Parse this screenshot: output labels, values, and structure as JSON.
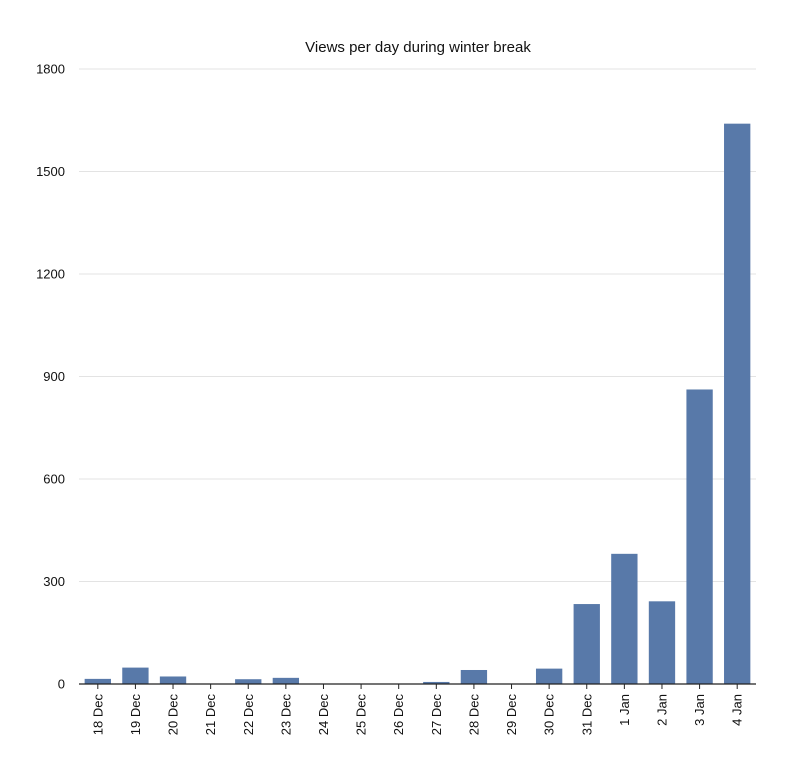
{
  "chart_data": {
    "type": "bar",
    "title": "Views per day during winter break",
    "xlabel": "",
    "ylabel": "",
    "categories": [
      "18 Dec",
      "19 Dec",
      "20 Dec",
      "21 Dec",
      "22 Dec",
      "23 Dec",
      "24 Dec",
      "25 Dec",
      "26 Dec",
      "27 Dec",
      "28 Dec",
      "29 Dec",
      "30 Dec",
      "31 Dec",
      "1 Jan",
      "2 Jan",
      "3 Jan",
      "4 Jan"
    ],
    "values": [
      15,
      48,
      22,
      0,
      14,
      18,
      0,
      0,
      0,
      6,
      41,
      0,
      45,
      234,
      381,
      242,
      862,
      1640
    ],
    "ylim": [
      0,
      1800
    ],
    "yticks": [
      0,
      300,
      600,
      900,
      1200,
      1500,
      1800
    ],
    "grid": true,
    "bar_color": "#5879a9"
  }
}
